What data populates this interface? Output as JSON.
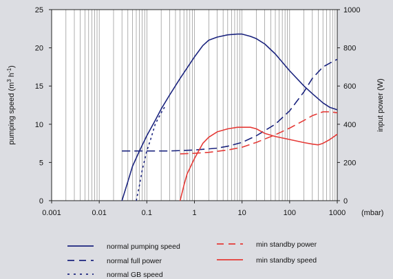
{
  "chart_data": {
    "type": "line",
    "x_scale": "log",
    "xlim": [
      0.001,
      1000
    ],
    "ylim_left": [
      0,
      25
    ],
    "ylim_right": [
      0,
      1000
    ],
    "y_ticks_left": [
      "0",
      "5",
      "10",
      "15",
      "20",
      "25"
    ],
    "y_ticks_right": [
      "0",
      "200",
      "400",
      "600",
      "800",
      "1000"
    ],
    "x_ticks": [
      "0.001",
      "0.01",
      "0.1",
      "1",
      "10",
      "100",
      "1000"
    ],
    "x_unit": "(mbar)",
    "ylabel_left": "pumping speed (m",
    "ylabel_left_sup1": "3",
    "ylabel_left_mid": " h",
    "ylabel_left_sup2": "-1",
    "ylabel_left_end": ")",
    "ylabel_right": "input power (W)",
    "grid": "vertical",
    "plot_background": "#ffffff",
    "legend_position": "bottom",
    "series": [
      {
        "name": "normal pumping speed",
        "axis": "left",
        "color": "#1a237e",
        "dash": "solid",
        "points": [
          [
            0.03,
            0
          ],
          [
            0.04,
            2.5
          ],
          [
            0.05,
            4.5
          ],
          [
            0.07,
            6.5
          ],
          [
            0.1,
            8.5
          ],
          [
            0.15,
            10.5
          ],
          [
            0.2,
            12
          ],
          [
            0.3,
            13.8
          ],
          [
            0.5,
            16
          ],
          [
            1,
            18.8
          ],
          [
            1.5,
            20.3
          ],
          [
            2,
            21
          ],
          [
            3,
            21.4
          ],
          [
            5,
            21.7
          ],
          [
            8,
            21.8
          ],
          [
            10,
            21.8
          ],
          [
            15,
            21.5
          ],
          [
            20,
            21.2
          ],
          [
            30,
            20.5
          ],
          [
            50,
            19.2
          ],
          [
            100,
            17
          ],
          [
            200,
            15
          ],
          [
            300,
            14
          ],
          [
            500,
            12.8
          ],
          [
            700,
            12.2
          ],
          [
            1000,
            11.9
          ]
        ]
      },
      {
        "name": "normal full power",
        "axis": "right",
        "color": "#1a237e",
        "dash": "long",
        "points": [
          [
            0.03,
            260
          ],
          [
            0.1,
            260
          ],
          [
            0.3,
            260
          ],
          [
            1,
            265
          ],
          [
            3,
            275
          ],
          [
            5,
            285
          ],
          [
            10,
            305
          ],
          [
            20,
            340
          ],
          [
            50,
            400
          ],
          [
            100,
            470
          ],
          [
            200,
            570
          ],
          [
            300,
            640
          ],
          [
            500,
            700
          ],
          [
            700,
            720
          ],
          [
            1000,
            740
          ]
        ]
      },
      {
        "name": "normal GB speed",
        "axis": "left",
        "color": "#1a237e",
        "dash": "dot",
        "points": [
          [
            0.06,
            0
          ],
          [
            0.07,
            2
          ],
          [
            0.08,
            4
          ],
          [
            0.1,
            6.5
          ],
          [
            0.12,
            8
          ],
          [
            0.15,
            10
          ],
          [
            0.2,
            11.5
          ],
          [
            0.25,
            12.5
          ]
        ]
      },
      {
        "name": "min standby power",
        "axis": "right",
        "color": "#e53935",
        "dash": "long",
        "points": [
          [
            0.5,
            245
          ],
          [
            1,
            248
          ],
          [
            2,
            253
          ],
          [
            5,
            265
          ],
          [
            10,
            280
          ],
          [
            20,
            305
          ],
          [
            50,
            345
          ],
          [
            100,
            380
          ],
          [
            200,
            420
          ],
          [
            300,
            445
          ],
          [
            500,
            465
          ],
          [
            700,
            465
          ],
          [
            1000,
            460
          ]
        ]
      },
      {
        "name": "min standby speed",
        "axis": "left",
        "color": "#e53935",
        "dash": "solid",
        "points": [
          [
            0.5,
            0
          ],
          [
            0.6,
            2
          ],
          [
            0.7,
            3.5
          ],
          [
            1,
            5.5
          ],
          [
            1.5,
            7.5
          ],
          [
            2,
            8.3
          ],
          [
            3,
            9
          ],
          [
            5,
            9.4
          ],
          [
            8,
            9.6
          ],
          [
            10,
            9.6
          ],
          [
            15,
            9.6
          ],
          [
            20,
            9.4
          ],
          [
            30,
            8.8
          ],
          [
            50,
            8.4
          ],
          [
            100,
            8
          ],
          [
            200,
            7.6
          ],
          [
            300,
            7.4
          ],
          [
            400,
            7.3
          ],
          [
            500,
            7.5
          ],
          [
            700,
            8
          ],
          [
            1000,
            8.7
          ]
        ]
      }
    ]
  }
}
